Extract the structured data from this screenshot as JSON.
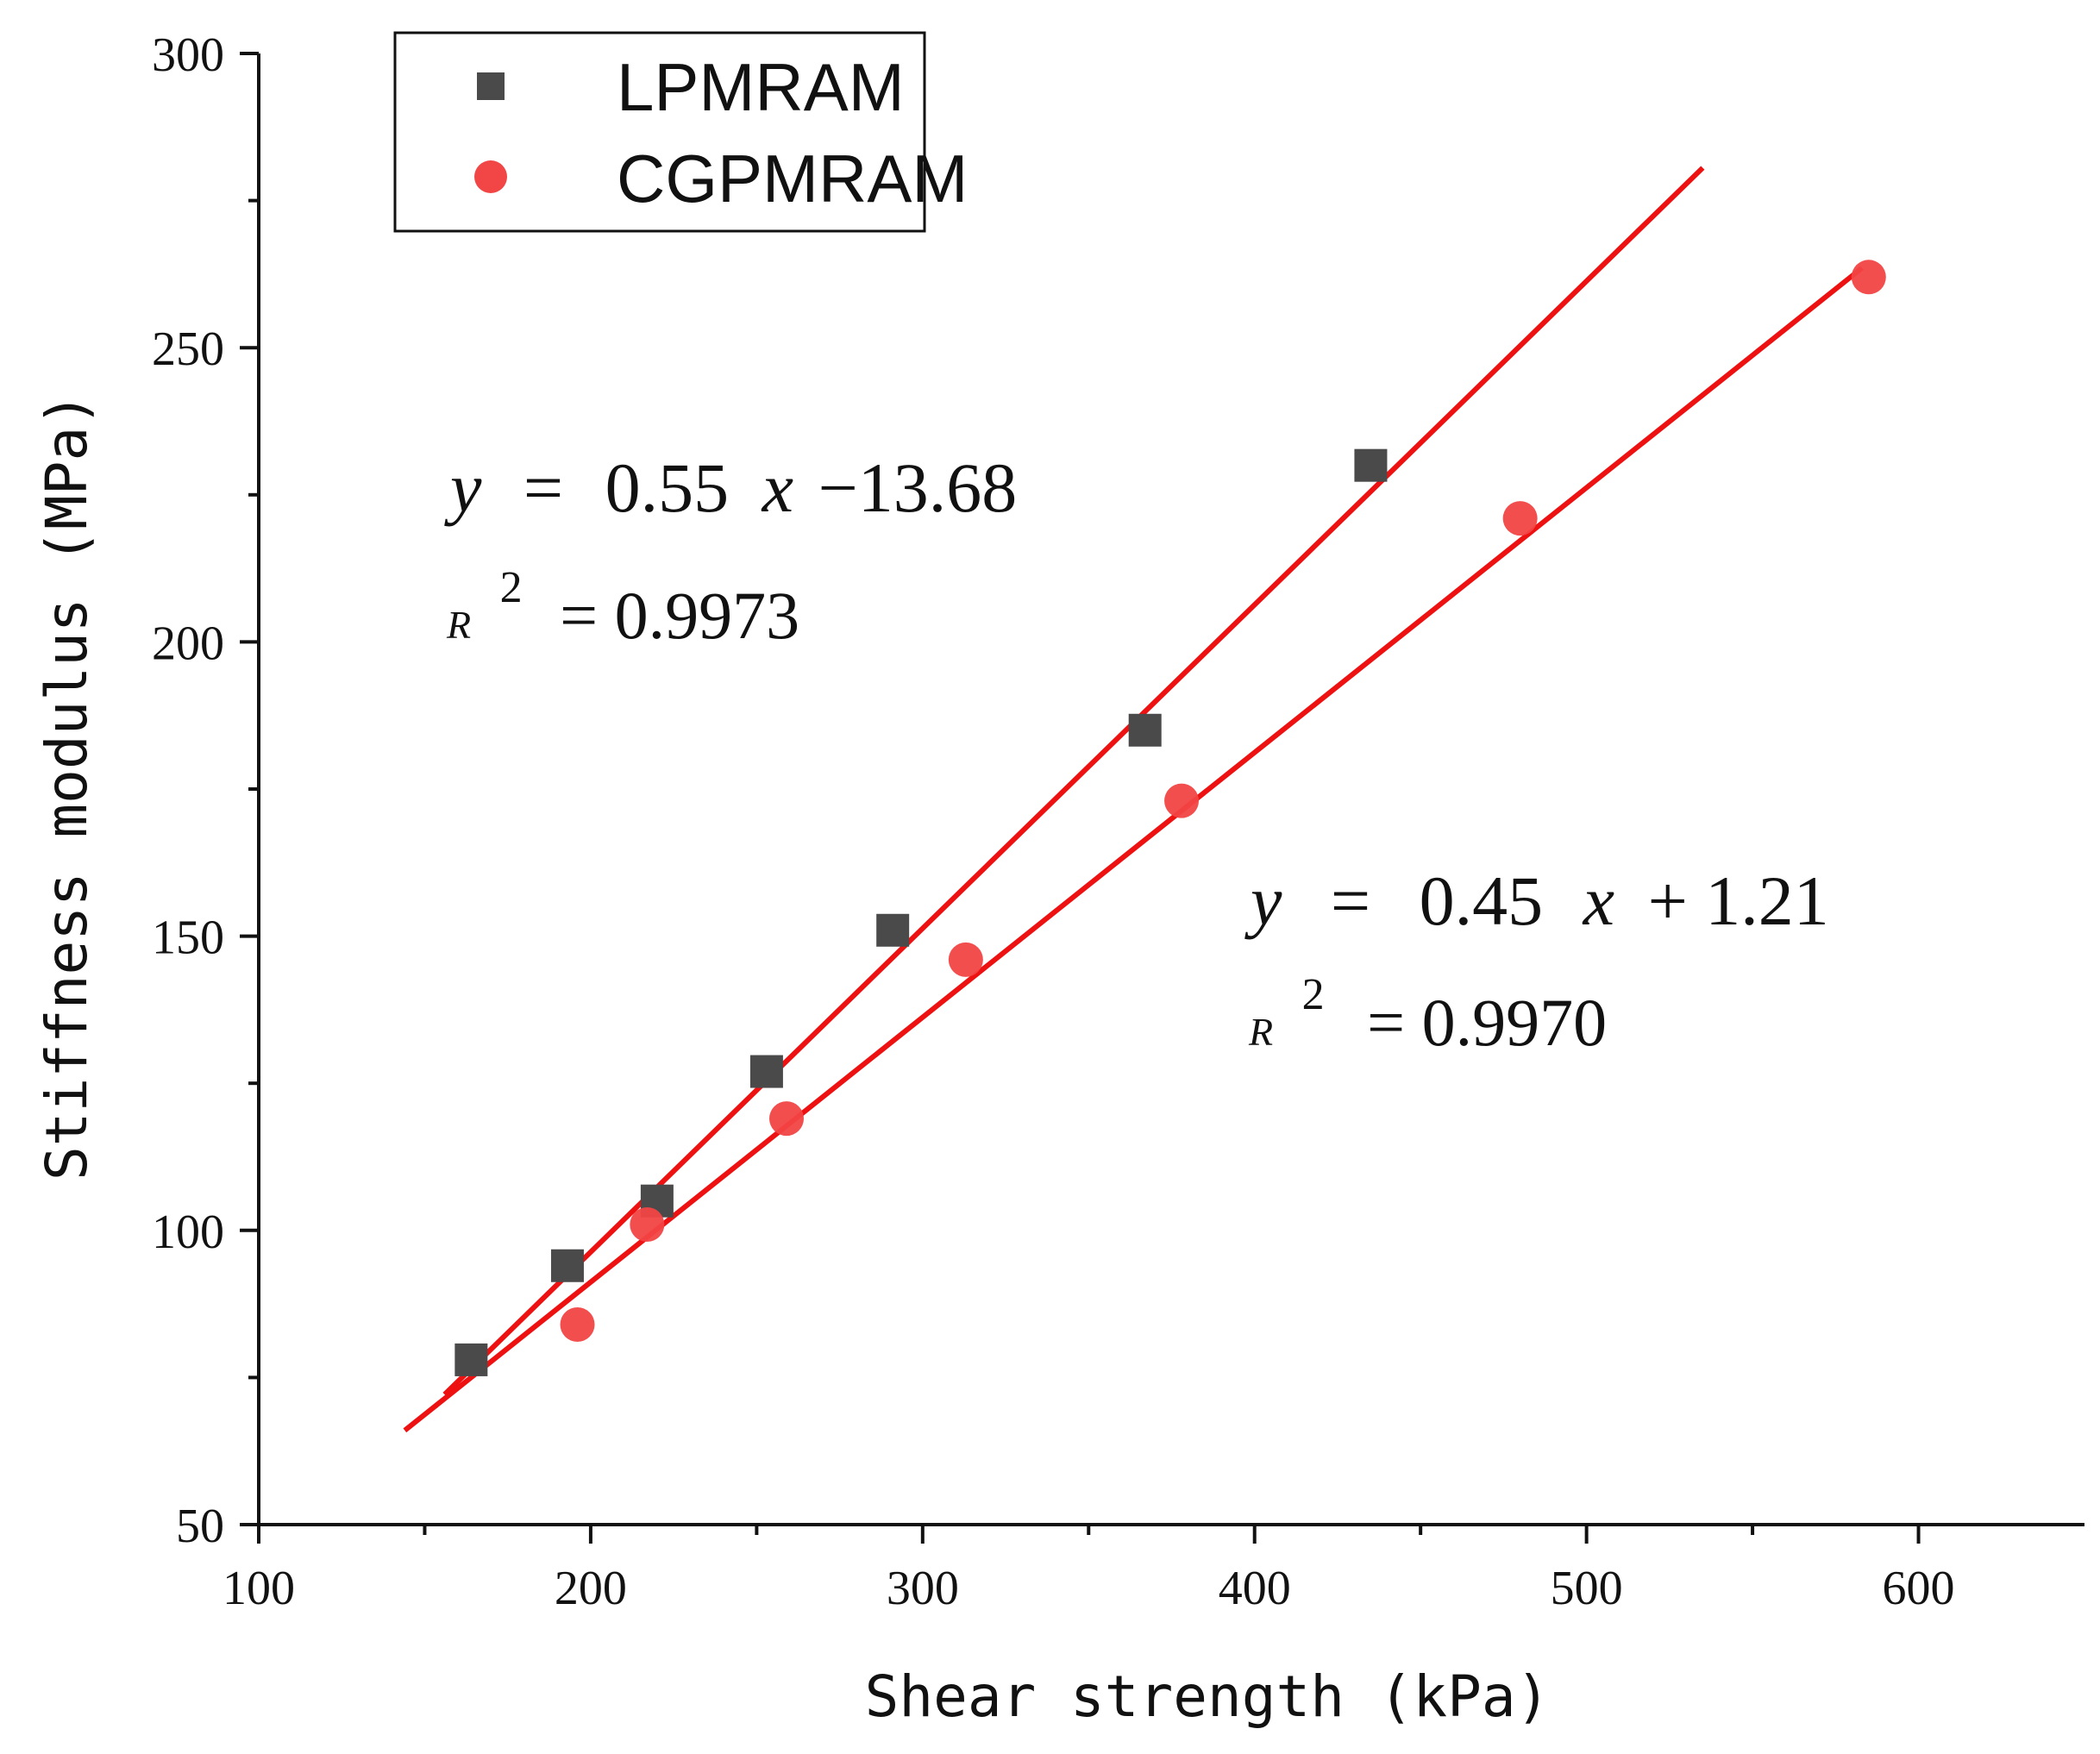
{
  "chart_data": {
    "type": "scatter",
    "title": "",
    "xlabel": "Shear strength (kPa)",
    "ylabel": "Stiffness modulus (MPa)",
    "xlim": [
      100,
      650
    ],
    "ylim": [
      50,
      300
    ],
    "xticks": [
      100,
      200,
      300,
      400,
      500,
      600
    ],
    "yticks": [
      50,
      100,
      150,
      200,
      250,
      300
    ],
    "xtick_labels": [
      "100",
      "200",
      "300",
      "400",
      "500",
      "600"
    ],
    "ytick_labels": [
      "50",
      "100",
      "150",
      "200",
      "250",
      "300"
    ],
    "legend_position": "top-left",
    "series": [
      {
        "name": "LPMRAM",
        "marker": "square",
        "color": "#4a4a4a",
        "x": [
          164,
          193,
          220,
          253,
          291,
          367,
          435
        ],
        "y": [
          78,
          94,
          105,
          127,
          151,
          185,
          230
        ],
        "fit": {
          "slope": 0.55,
          "intercept": -13.68,
          "x_range": [
            156,
            535
          ],
          "equation_parts": {
            "lhs": "y",
            "eq": "=",
            "coef": "0.55",
            "var": "x",
            "rest": "−13.68"
          },
          "r2_label": "R",
          "r2_exp": "2",
          "r2_value": "= 0.9973",
          "color": "#ee1111"
        }
      },
      {
        "name": "CGPMRAM",
        "marker": "circle",
        "color": "#f24545",
        "x": [
          196,
          217,
          259,
          313,
          378,
          480,
          585
        ],
        "y": [
          84,
          101,
          119,
          146,
          173,
          221,
          262
        ],
        "fit": {
          "slope": 0.45,
          "intercept": 1.21,
          "x_range": [
            144,
            583
          ],
          "equation_parts": {
            "lhs": "y",
            "eq": "=",
            "coef": "0.45",
            "var": "x",
            "rest": "+ 1.21"
          },
          "r2_label": "R",
          "r2_exp": "2",
          "r2_value": "= 0.9970",
          "color": "#ee1111"
        }
      }
    ]
  }
}
